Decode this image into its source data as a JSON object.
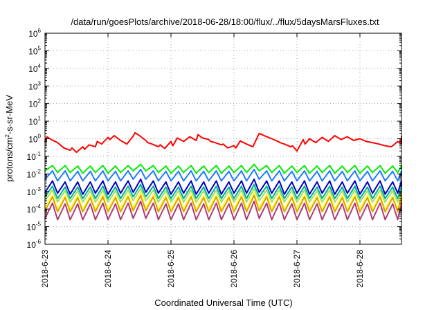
{
  "chart_data": {
    "type": "line",
    "title": "/data/run/goesPlots/archive/2018-06-28/18:00/flux/../flux/5daysMarsFluxes.txt",
    "xlabel": "Coordinated Universal Time (UTC)",
    "ylabel": {
      "base": "protons/cm",
      "sup": "2",
      "rest": "-s-sr-MeV"
    },
    "y_scale": "log",
    "ylim_exponents": [
      -6,
      6
    ],
    "y_tick_base": "10",
    "y_tick_exponents": [
      "-6",
      "-5",
      "-4",
      "-3",
      "-2",
      "-1",
      "0",
      "1",
      "2",
      "3",
      "4",
      "5",
      "6"
    ],
    "xlim_days": [
      "2018-06-23",
      "2018-06-28 ~19:00"
    ],
    "x_tick_labels": [
      "2018-6-23",
      "2018-6-24",
      "2018-6-25",
      "2018-6-26",
      "2018-6-27",
      "2018-6-28"
    ],
    "grid": true,
    "legend": "none",
    "series": [
      {
        "color": "#ff0000",
        "x_days": [
          0.0,
          0.03,
          0.1,
          0.2,
          0.3,
          0.4,
          0.43,
          0.5,
          0.6,
          0.63,
          0.7,
          0.8,
          0.83,
          0.9,
          1.0,
          1.03,
          1.1,
          1.2,
          1.3,
          1.4,
          1.43,
          1.5,
          1.6,
          1.63,
          1.7,
          1.8,
          1.83,
          1.9,
          2.0,
          2.03,
          2.1,
          2.2,
          2.3,
          2.4,
          2.43,
          2.5,
          2.6,
          2.63,
          2.7,
          2.8,
          2.83,
          2.9,
          3.0,
          3.03,
          3.1,
          3.2,
          3.3,
          3.4,
          3.5,
          3.6,
          3.7,
          3.73,
          3.8,
          3.9,
          3.93,
          4.0,
          4.1,
          4.13,
          4.2,
          4.3,
          4.4,
          4.5,
          4.6,
          4.7,
          4.8,
          4.9,
          5.0,
          5.1,
          5.2,
          5.3,
          5.4,
          5.5,
          5.6,
          5.7,
          5.77
        ],
        "values": [
          0.7,
          1.3,
          0.9,
          0.6,
          0.3,
          0.22,
          0.3,
          0.17,
          0.35,
          0.25,
          0.45,
          0.35,
          0.7,
          0.5,
          1.2,
          0.9,
          1.5,
          0.8,
          0.5,
          1.4,
          2.2,
          1.5,
          0.8,
          0.6,
          0.5,
          0.35,
          0.45,
          0.28,
          0.7,
          0.4,
          1.1,
          0.7,
          1.3,
          0.8,
          1.7,
          1.1,
          0.9,
          0.7,
          0.6,
          0.45,
          0.5,
          0.3,
          0.4,
          0.3,
          0.75,
          0.5,
          0.35,
          2.0,
          1.4,
          1.0,
          0.7,
          0.6,
          0.5,
          0.35,
          0.4,
          0.2,
          0.9,
          0.5,
          1.0,
          0.6,
          1.2,
          0.7,
          1.5,
          0.9,
          1.3,
          0.8,
          1.0,
          0.7,
          0.6,
          0.5,
          0.4,
          0.35,
          0.7,
          0.5,
          1.4
        ]
      },
      {
        "color": "#00ee00",
        "x_days": [
          0.0,
          0.12,
          0.2,
          0.32,
          0.4,
          0.52,
          0.6,
          0.72,
          0.8,
          0.92,
          1.0,
          1.12,
          1.2,
          1.32,
          1.4,
          1.52,
          1.6,
          1.72,
          1.8,
          1.92,
          2.0,
          2.12,
          2.2,
          2.32,
          2.4,
          2.52,
          2.6,
          2.72,
          2.8,
          2.92,
          3.0,
          3.12,
          3.2,
          3.32,
          3.4,
          3.52,
          3.6,
          3.72,
          3.8,
          3.92,
          4.0,
          4.12,
          4.2,
          4.32,
          4.4,
          4.52,
          4.6,
          4.72,
          4.8,
          4.92,
          5.0,
          5.12,
          5.2,
          5.32,
          5.4,
          5.52,
          5.6,
          5.72,
          5.77
        ],
        "values": [
          0.015,
          0.03,
          0.012,
          0.03,
          0.012,
          0.028,
          0.011,
          0.028,
          0.012,
          0.03,
          0.011,
          0.028,
          0.012,
          0.03,
          0.015,
          0.035,
          0.015,
          0.03,
          0.012,
          0.028,
          0.011,
          0.028,
          0.012,
          0.03,
          0.011,
          0.028,
          0.012,
          0.03,
          0.011,
          0.028,
          0.012,
          0.03,
          0.012,
          0.035,
          0.015,
          0.03,
          0.012,
          0.03,
          0.011,
          0.028,
          0.012,
          0.03,
          0.011,
          0.028,
          0.012,
          0.03,
          0.011,
          0.028,
          0.012,
          0.03,
          0.011,
          0.028,
          0.012,
          0.03,
          0.011,
          0.028,
          0.012,
          0.03,
          0.02
        ]
      },
      {
        "color": "#1e7bff",
        "x_days": [
          0.0,
          0.12,
          0.2,
          0.32,
          0.4,
          0.52,
          0.6,
          0.72,
          0.8,
          0.92,
          1.0,
          1.12,
          1.2,
          1.32,
          1.4,
          1.52,
          1.6,
          1.72,
          1.8,
          1.92,
          2.0,
          2.12,
          2.2,
          2.32,
          2.4,
          2.52,
          2.6,
          2.72,
          2.8,
          2.92,
          3.0,
          3.12,
          3.2,
          3.32,
          3.4,
          3.52,
          3.6,
          3.72,
          3.8,
          3.92,
          4.0,
          4.12,
          4.2,
          4.32,
          4.4,
          4.52,
          4.6,
          4.72,
          4.8,
          4.92,
          5.0,
          5.12,
          5.2,
          5.32,
          5.4,
          5.52,
          5.6,
          5.72,
          5.77
        ],
        "values": [
          0.005,
          0.015,
          0.004,
          0.015,
          0.004,
          0.014,
          0.004,
          0.014,
          0.004,
          0.015,
          0.004,
          0.014,
          0.004,
          0.015,
          0.005,
          0.018,
          0.005,
          0.015,
          0.004,
          0.014,
          0.004,
          0.014,
          0.004,
          0.015,
          0.004,
          0.014,
          0.004,
          0.015,
          0.004,
          0.014,
          0.004,
          0.015,
          0.004,
          0.018,
          0.005,
          0.015,
          0.004,
          0.015,
          0.004,
          0.014,
          0.004,
          0.015,
          0.004,
          0.014,
          0.004,
          0.015,
          0.004,
          0.014,
          0.004,
          0.015,
          0.004,
          0.014,
          0.004,
          0.015,
          0.004,
          0.014,
          0.004,
          0.015,
          0.008
        ]
      },
      {
        "color": "#0000c0",
        "x_days": [
          0.0,
          0.12,
          0.2,
          0.32,
          0.4,
          0.52,
          0.6,
          0.72,
          0.8,
          0.92,
          1.0,
          1.12,
          1.2,
          1.32,
          1.4,
          1.52,
          1.6,
          1.72,
          1.8,
          1.92,
          2.0,
          2.12,
          2.2,
          2.32,
          2.4,
          2.52,
          2.6,
          2.72,
          2.8,
          2.92,
          3.0,
          3.12,
          3.2,
          3.32,
          3.4,
          3.52,
          3.6,
          3.72,
          3.8,
          3.92,
          4.0,
          4.12,
          4.2,
          4.32,
          4.4,
          4.52,
          4.6,
          4.72,
          4.8,
          4.92,
          5.0,
          5.12,
          5.2,
          5.32,
          5.4,
          5.52,
          5.6,
          5.72,
          5.77
        ],
        "values": [
          0.0009,
          0.004,
          0.0008,
          0.0035,
          0.0007,
          0.0035,
          0.0007,
          0.0035,
          0.0008,
          0.004,
          0.0007,
          0.0035,
          0.0008,
          0.004,
          0.0009,
          0.005,
          0.0009,
          0.004,
          0.0008,
          0.0035,
          0.0007,
          0.0035,
          0.0008,
          0.004,
          0.0007,
          0.0035,
          0.0008,
          0.004,
          0.0007,
          0.0035,
          0.0008,
          0.004,
          0.0008,
          0.005,
          0.0009,
          0.004,
          0.0008,
          0.004,
          0.0007,
          0.0035,
          0.0008,
          0.004,
          0.0007,
          0.0035,
          0.0008,
          0.004,
          0.0007,
          0.0035,
          0.0008,
          0.004,
          0.0007,
          0.0035,
          0.0008,
          0.004,
          0.0007,
          0.0035,
          0.0008,
          0.004,
          0.002
        ]
      },
      {
        "color": "#00b0a0",
        "x_days": [
          0.0,
          0.12,
          0.2,
          0.32,
          0.4,
          0.52,
          0.6,
          0.72,
          0.8,
          0.92,
          1.0,
          1.12,
          1.2,
          1.32,
          1.4,
          1.52,
          1.6,
          1.72,
          1.8,
          1.92,
          2.0,
          2.12,
          2.2,
          2.32,
          2.4,
          2.52,
          2.6,
          2.72,
          2.8,
          2.92,
          3.0,
          3.12,
          3.2,
          3.32,
          3.4,
          3.52,
          3.6,
          3.72,
          3.8,
          3.92,
          4.0,
          4.12,
          4.2,
          4.32,
          4.4,
          4.52,
          4.6,
          4.72,
          4.8,
          4.92,
          5.0,
          5.12,
          5.2,
          5.32,
          5.4,
          5.52,
          5.6,
          5.72,
          5.77
        ],
        "values": [
          0.0005,
          0.002,
          0.0004,
          0.0018,
          0.0004,
          0.0018,
          0.0004,
          0.0018,
          0.0004,
          0.002,
          0.0004,
          0.0018,
          0.0004,
          0.002,
          0.0005,
          0.0025,
          0.0005,
          0.002,
          0.0004,
          0.0018,
          0.0004,
          0.0018,
          0.0004,
          0.002,
          0.0004,
          0.0018,
          0.0004,
          0.002,
          0.0004,
          0.0018,
          0.0004,
          0.002,
          0.0004,
          0.0025,
          0.0005,
          0.002,
          0.0004,
          0.002,
          0.0004,
          0.0018,
          0.0004,
          0.002,
          0.0004,
          0.0018,
          0.0004,
          0.002,
          0.0004,
          0.0018,
          0.0004,
          0.002,
          0.0004,
          0.0018,
          0.0004,
          0.002,
          0.0004,
          0.0018,
          0.0004,
          0.002,
          0.001
        ]
      },
      {
        "color": "#a0e060",
        "x_days": [
          0.0,
          0.12,
          0.2,
          0.32,
          0.4,
          0.52,
          0.6,
          0.72,
          0.8,
          0.92,
          1.0,
          1.12,
          1.2,
          1.32,
          1.4,
          1.52,
          1.6,
          1.72,
          1.8,
          1.92,
          2.0,
          2.12,
          2.2,
          2.32,
          2.4,
          2.52,
          2.6,
          2.72,
          2.8,
          2.92,
          3.0,
          3.12,
          3.2,
          3.32,
          3.4,
          3.52,
          3.6,
          3.72,
          3.8,
          3.92,
          4.0,
          4.12,
          4.2,
          4.32,
          4.4,
          4.52,
          4.6,
          4.72,
          4.8,
          4.92,
          5.0,
          5.12,
          5.2,
          5.32,
          5.4,
          5.52,
          5.6,
          5.72,
          5.77
        ],
        "values": [
          0.0003,
          0.0012,
          0.00025,
          0.0011,
          0.00025,
          0.0011,
          0.00025,
          0.0011,
          0.00025,
          0.0012,
          0.00025,
          0.0011,
          0.00025,
          0.0012,
          0.0003,
          0.0015,
          0.0003,
          0.0012,
          0.00025,
          0.0011,
          0.00025,
          0.0011,
          0.00025,
          0.0012,
          0.00025,
          0.0011,
          0.00025,
          0.0012,
          0.00025,
          0.0011,
          0.00025,
          0.0012,
          0.00025,
          0.0015,
          0.0003,
          0.0012,
          0.00025,
          0.0012,
          0.00025,
          0.0011,
          0.00025,
          0.0012,
          0.00025,
          0.0011,
          0.00025,
          0.0012,
          0.00025,
          0.0011,
          0.00025,
          0.0012,
          0.00025,
          0.0011,
          0.00025,
          0.0012,
          0.00025,
          0.0011,
          0.00025,
          0.0012,
          0.0006
        ]
      },
      {
        "color": "#ffff40",
        "x_days": [
          0.0,
          0.12,
          0.2,
          0.32,
          0.4,
          0.52,
          0.6,
          0.72,
          0.8,
          0.92,
          1.0,
          1.12,
          1.2,
          1.32,
          1.4,
          1.52,
          1.6,
          1.72,
          1.8,
          1.92,
          2.0,
          2.12,
          2.2,
          2.32,
          2.4,
          2.52,
          2.6,
          2.72,
          2.8,
          2.92,
          3.0,
          3.12,
          3.2,
          3.32,
          3.4,
          3.52,
          3.6,
          3.72,
          3.8,
          3.92,
          4.0,
          4.12,
          4.2,
          4.32,
          4.4,
          4.52,
          4.6,
          4.72,
          4.8,
          4.92,
          5.0,
          5.12,
          5.2,
          5.32,
          5.4,
          5.52,
          5.6,
          5.72,
          5.77
        ],
        "values": [
          0.00012,
          0.0007,
          0.0001,
          0.0006,
          0.0001,
          0.0006,
          0.0001,
          0.0006,
          0.0001,
          0.0007,
          0.0001,
          0.0006,
          0.0001,
          0.0007,
          0.00012,
          0.0009,
          0.00012,
          0.0007,
          0.0001,
          0.0006,
          0.0001,
          0.0006,
          0.0001,
          0.0007,
          0.0001,
          0.0006,
          0.0001,
          0.0007,
          0.0001,
          0.0006,
          0.0001,
          0.0007,
          0.0001,
          0.0009,
          0.00012,
          0.0007,
          0.0001,
          0.0007,
          0.0001,
          0.0006,
          0.0001,
          0.0007,
          0.0001,
          0.0006,
          0.0001,
          0.0007,
          0.0001,
          0.0006,
          0.0001,
          0.0007,
          0.0001,
          0.0006,
          0.0001,
          0.0007,
          0.0001,
          0.0006,
          0.0001,
          0.0007,
          0.0003
        ]
      },
      {
        "color": "#e0a000",
        "x_days": [
          0.0,
          0.12,
          0.2,
          0.32,
          0.4,
          0.52,
          0.6,
          0.72,
          0.8,
          0.92,
          1.0,
          1.12,
          1.2,
          1.32,
          1.4,
          1.52,
          1.6,
          1.72,
          1.8,
          1.92,
          2.0,
          2.12,
          2.2,
          2.32,
          2.4,
          2.52,
          2.6,
          2.72,
          2.8,
          2.92,
          3.0,
          3.12,
          3.2,
          3.32,
          3.4,
          3.52,
          3.6,
          3.72,
          3.8,
          3.92,
          4.0,
          4.12,
          4.2,
          4.32,
          4.4,
          4.52,
          4.6,
          4.72,
          4.8,
          4.92,
          5.0,
          5.12,
          5.2,
          5.32,
          5.4,
          5.52,
          5.6,
          5.72,
          5.77
        ],
        "values": [
          8e-05,
          0.0005,
          7e-05,
          0.00045,
          7e-05,
          0.00045,
          7e-05,
          0.00045,
          7e-05,
          0.0005,
          7e-05,
          0.00045,
          7e-05,
          0.0005,
          8e-05,
          0.0006,
          8e-05,
          0.0005,
          7e-05,
          0.00045,
          7e-05,
          0.00045,
          7e-05,
          0.0005,
          7e-05,
          0.00045,
          7e-05,
          0.0005,
          7e-05,
          0.00045,
          7e-05,
          0.0005,
          7e-05,
          0.0006,
          8e-05,
          0.0005,
          7e-05,
          0.0005,
          7e-05,
          0.00045,
          7e-05,
          0.0005,
          7e-05,
          0.00045,
          7e-05,
          0.0005,
          7e-05,
          0.00045,
          7e-05,
          0.0005,
          7e-05,
          0.00045,
          7e-05,
          0.0005,
          7e-05,
          0.00045,
          7e-05,
          0.0005,
          0.0002
        ]
      },
      {
        "color": "#b03a70",
        "x_days": [
          0.0,
          0.12,
          0.2,
          0.32,
          0.4,
          0.52,
          0.6,
          0.72,
          0.8,
          0.92,
          1.0,
          1.12,
          1.2,
          1.32,
          1.4,
          1.52,
          1.6,
          1.72,
          1.8,
          1.92,
          2.0,
          2.12,
          2.2,
          2.32,
          2.4,
          2.52,
          2.6,
          2.72,
          2.8,
          2.92,
          3.0,
          3.12,
          3.2,
          3.32,
          3.4,
          3.52,
          3.6,
          3.72,
          3.8,
          3.92,
          4.0,
          4.12,
          4.2,
          4.32,
          4.4,
          4.52,
          4.6,
          4.72,
          4.8,
          4.92,
          5.0,
          5.12,
          5.2,
          5.32,
          5.4,
          5.52,
          5.6,
          5.72,
          5.77
        ],
        "values": [
          3e-05,
          0.00022,
          2.5e-05,
          0.0002,
          2.5e-05,
          0.0002,
          2.5e-05,
          0.0002,
          2.5e-05,
          0.00022,
          2.5e-05,
          0.0002,
          2.5e-05,
          0.00022,
          3e-05,
          0.00028,
          3e-05,
          0.00022,
          2.5e-05,
          0.0002,
          2.5e-05,
          0.0002,
          2.5e-05,
          0.00022,
          2.5e-05,
          0.0002,
          2.5e-05,
          0.00022,
          2.5e-05,
          0.0002,
          2.5e-05,
          0.00022,
          2.5e-05,
          0.00028,
          3e-05,
          0.00022,
          2.5e-05,
          0.00022,
          2.5e-05,
          0.0002,
          2.5e-05,
          0.00022,
          2.5e-05,
          0.0002,
          2.5e-05,
          0.00022,
          2.5e-05,
          0.0002,
          2.5e-05,
          0.00022,
          2.5e-05,
          0.0002,
          2.5e-05,
          0.00022,
          2.5e-05,
          0.0002,
          2.5e-05,
          0.00022,
          8e-05
        ]
      }
    ]
  }
}
